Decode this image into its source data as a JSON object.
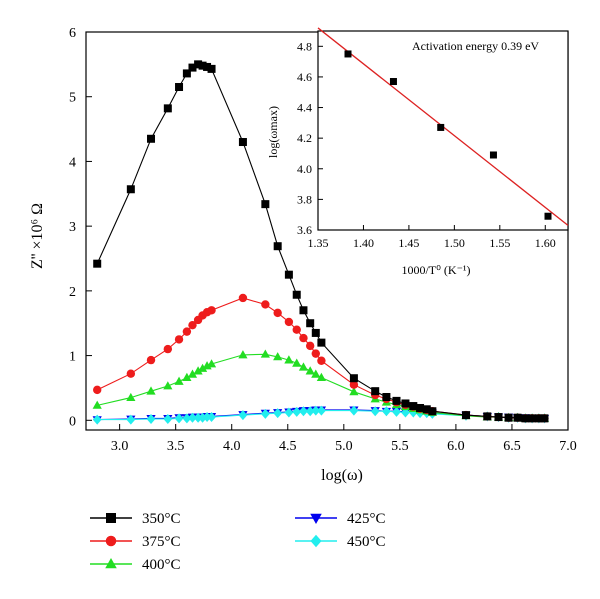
{
  "chart_data": [
    {
      "type": "line",
      "xlabel": "log(ω)",
      "ylabel": "Z'' ×10⁶ Ω",
      "xlim": [
        2.7,
        7.0
      ],
      "ylim": [
        -0.15,
        6.0
      ],
      "xticks": [
        "3.0",
        "3.5",
        "4.0",
        "4.5",
        "5.0",
        "5.5",
        "6.0",
        "6.5",
        "7.0"
      ],
      "yticks": [
        "0",
        "1",
        "2",
        "3",
        "4",
        "5",
        "6"
      ],
      "legend_placement": "bottom",
      "series": [
        {
          "name": "350°C",
          "color": "#000000",
          "marker": "square",
          "x": [
            2.8,
            3.1,
            3.28,
            3.43,
            3.53,
            3.6,
            3.65,
            3.7,
            3.74,
            3.78,
            3.82,
            4.1,
            4.3,
            4.41,
            4.51,
            4.58,
            4.64,
            4.7,
            4.75,
            4.8,
            5.09,
            5.28,
            5.38,
            5.47,
            5.55,
            5.62,
            5.68,
            5.74,
            5.79,
            6.09,
            6.28,
            6.38,
            6.47,
            6.55,
            6.62,
            6.68,
            6.74,
            6.79
          ],
          "y": [
            2.42,
            3.57,
            4.35,
            4.82,
            5.15,
            5.36,
            5.45,
            5.5,
            5.48,
            5.46,
            5.43,
            4.3,
            3.34,
            2.69,
            2.25,
            1.94,
            1.7,
            1.5,
            1.35,
            1.2,
            0.65,
            0.45,
            0.36,
            0.3,
            0.26,
            0.22,
            0.19,
            0.17,
            0.14,
            0.08,
            0.06,
            0.05,
            0.04,
            0.04,
            0.03,
            0.03,
            0.03,
            0.03
          ]
        },
        {
          "name": "375°C",
          "color": "#ee1c1c",
          "marker": "circle",
          "x": [
            2.8,
            3.1,
            3.28,
            3.43,
            3.53,
            3.6,
            3.65,
            3.7,
            3.74,
            3.78,
            3.82,
            4.1,
            4.3,
            4.41,
            4.51,
            4.58,
            4.64,
            4.7,
            4.75,
            4.8,
            5.09,
            5.28,
            5.38,
            5.47,
            5.55,
            5.62,
            5.68,
            5.74,
            5.79,
            6.09,
            6.28,
            6.38,
            6.47,
            6.55,
            6.62,
            6.68,
            6.74,
            6.79
          ],
          "y": [
            0.47,
            0.72,
            0.93,
            1.1,
            1.25,
            1.37,
            1.47,
            1.55,
            1.62,
            1.67,
            1.7,
            1.89,
            1.79,
            1.66,
            1.52,
            1.4,
            1.27,
            1.15,
            1.03,
            0.92,
            0.55,
            0.39,
            0.33,
            0.28,
            0.24,
            0.21,
            0.18,
            0.16,
            0.14,
            0.08,
            0.06,
            0.05,
            0.04,
            0.04,
            0.03,
            0.03,
            0.03,
            0.03
          ]
        },
        {
          "name": "400°C",
          "color": "#22dd22",
          "marker": "triangle-up",
          "x": [
            2.8,
            3.1,
            3.28,
            3.43,
            3.53,
            3.6,
            3.65,
            3.7,
            3.74,
            3.78,
            3.82,
            4.1,
            4.3,
            4.41,
            4.51,
            4.58,
            4.64,
            4.7,
            4.75,
            4.8,
            5.09,
            5.28,
            5.38,
            5.47,
            5.55,
            5.62,
            5.68,
            5.74,
            5.79,
            6.09,
            6.28,
            6.38,
            6.47,
            6.55,
            6.62,
            6.68,
            6.74,
            6.79
          ],
          "y": [
            0.23,
            0.35,
            0.45,
            0.53,
            0.6,
            0.66,
            0.71,
            0.76,
            0.8,
            0.84,
            0.87,
            1.01,
            1.02,
            0.98,
            0.93,
            0.88,
            0.82,
            0.76,
            0.71,
            0.66,
            0.44,
            0.33,
            0.28,
            0.24,
            0.21,
            0.18,
            0.16,
            0.14,
            0.12,
            0.07,
            0.05,
            0.05,
            0.04,
            0.04,
            0.03,
            0.03,
            0.03,
            0.03
          ]
        },
        {
          "name": "425°C",
          "color": "#0000ee",
          "marker": "triangle-down",
          "x": [
            2.8,
            3.1,
            3.28,
            3.43,
            3.53,
            3.6,
            3.65,
            3.7,
            3.74,
            3.78,
            3.82,
            4.1,
            4.3,
            4.41,
            4.51,
            4.58,
            4.64,
            4.7,
            4.75,
            4.8,
            5.09,
            5.28,
            5.38,
            5.47,
            5.55,
            5.62,
            5.68,
            5.74,
            5.79,
            6.09,
            6.28,
            6.38,
            6.47,
            6.55,
            6.62,
            6.68,
            6.74,
            6.79
          ],
          "y": [
            0.01,
            0.02,
            0.03,
            0.03,
            0.04,
            0.04,
            0.05,
            0.05,
            0.05,
            0.06,
            0.06,
            0.09,
            0.11,
            0.12,
            0.13,
            0.14,
            0.15,
            0.15,
            0.16,
            0.16,
            0.16,
            0.15,
            0.14,
            0.14,
            0.13,
            0.12,
            0.12,
            0.11,
            0.11,
            0.08,
            0.06,
            0.05,
            0.05,
            0.04,
            0.04,
            0.03,
            0.03,
            0.03
          ]
        },
        {
          "name": "450°C",
          "color": "#22eeee",
          "marker": "diamond",
          "x": [
            2.8,
            3.1,
            3.28,
            3.43,
            3.53,
            3.6,
            3.65,
            3.7,
            3.74,
            3.78,
            3.82,
            4.1,
            4.3,
            4.41,
            4.51,
            4.58,
            4.64,
            4.7,
            4.75,
            4.8,
            5.09,
            5.28,
            5.38,
            5.47,
            5.55,
            5.62,
            5.68,
            5.74,
            5.79,
            6.09,
            6.28,
            6.38,
            6.47,
            6.55,
            6.62,
            6.68,
            6.74,
            6.79
          ],
          "y": [
            0.01,
            0.01,
            0.02,
            0.02,
            0.03,
            0.03,
            0.04,
            0.04,
            0.04,
            0.05,
            0.05,
            0.08,
            0.1,
            0.11,
            0.12,
            0.13,
            0.14,
            0.14,
            0.15,
            0.15,
            0.15,
            0.14,
            0.14,
            0.13,
            0.12,
            0.12,
            0.11,
            0.11,
            0.1,
            0.07,
            0.06,
            0.05,
            0.04,
            0.04,
            0.03,
            0.03,
            0.03,
            0.03
          ]
        }
      ]
    },
    {
      "type": "scatter",
      "annotation": "Activation energy 0.39 eV",
      "xlabel": "1000/T⁰ (K⁻¹)",
      "ylabel": "log(ωmax)",
      "xlim": [
        1.35,
        1.625
      ],
      "ylim": [
        3.6,
        4.9
      ],
      "xticks": [
        "1.35",
        "1.40",
        "1.45",
        "1.50",
        "1.55",
        "1.60"
      ],
      "yticks": [
        "3.6",
        "3.8",
        "4.0",
        "4.2",
        "4.4",
        "4.6",
        "4.8"
      ],
      "points": {
        "x": [
          1.383,
          1.433,
          1.485,
          1.543,
          1.603
        ],
        "y": [
          4.75,
          4.57,
          4.27,
          4.09,
          3.69
        ]
      },
      "fit": {
        "color": "#dd2222",
        "x": [
          1.35,
          1.625
        ],
        "y": [
          4.92,
          3.63
        ]
      }
    }
  ]
}
